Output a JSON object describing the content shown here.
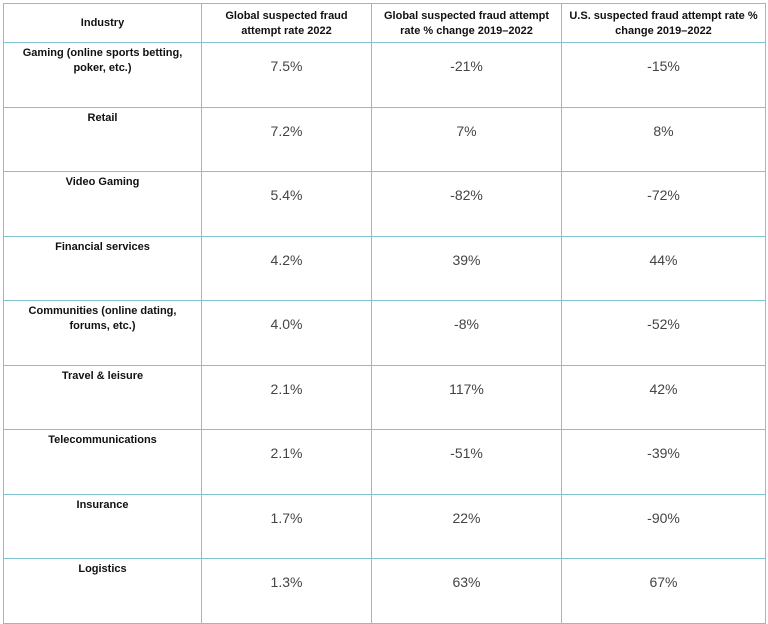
{
  "table": {
    "headers": [
      "Industry",
      "Global suspected fraud attempt rate 2022",
      "Global suspected fraud attempt rate % change 2019–2022",
      "U.S. suspected fraud attempt rate % change 2019–2022"
    ],
    "rows": [
      {
        "industry": "Gaming (online sports betting, poker, etc.)",
        "global_rate_2022": "7.5%",
        "global_change": "-21%",
        "us_change": "-15%"
      },
      {
        "industry": "Retail",
        "global_rate_2022": "7.2%",
        "global_change": "7%",
        "us_change": "8%"
      },
      {
        "industry": "Video Gaming",
        "global_rate_2022": "5.4%",
        "global_change": "-82%",
        "us_change": "-72%"
      },
      {
        "industry": "Financial services",
        "global_rate_2022": "4.2%",
        "global_change": "39%",
        "us_change": "44%"
      },
      {
        "industry": "Communities (online dating, forums, etc.)",
        "global_rate_2022": "4.0%",
        "global_change": "-8%",
        "us_change": "-52%"
      },
      {
        "industry": "Travel & leisure",
        "global_rate_2022": "2.1%",
        "global_change": "117%",
        "us_change": "42%"
      },
      {
        "industry": "Telecommunications",
        "global_rate_2022": "2.1%",
        "global_change": "-51%",
        "us_change": "-39%"
      },
      {
        "industry": "Insurance",
        "global_rate_2022": "1.7%",
        "global_change": "22%",
        "us_change": "-90%"
      },
      {
        "industry": "Logistics",
        "global_rate_2022": "1.3%",
        "global_change": "63%",
        "us_change": "67%"
      }
    ]
  },
  "colors": {
    "border": "#7fc4d0",
    "header_text": "#111111",
    "value_text": "#444444"
  }
}
